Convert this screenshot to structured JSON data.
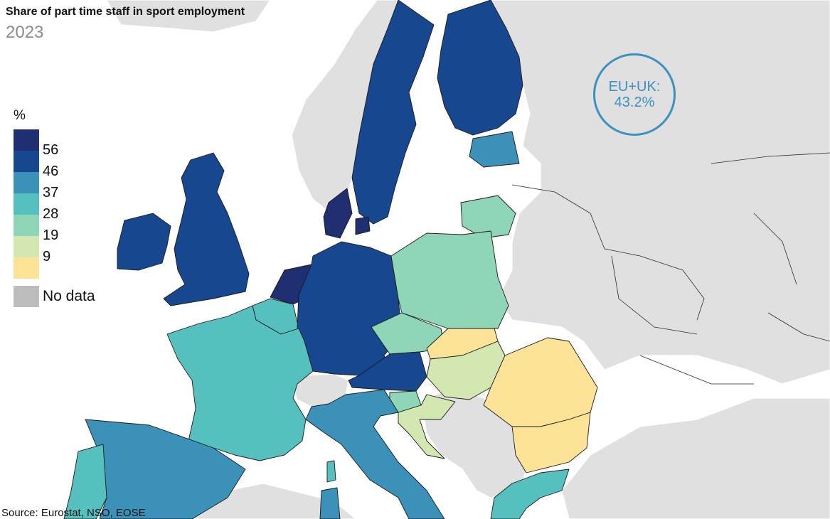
{
  "title": "Share of part time staff in sport employment",
  "subtitle": "2023",
  "legend": {
    "unit": "%",
    "items": [
      {
        "label": "56",
        "color": "#1f2f72"
      },
      {
        "label": "46",
        "color": "#17478f"
      },
      {
        "label": "37",
        "color": "#3b91b8"
      },
      {
        "label": "28",
        "color": "#56c0bf"
      },
      {
        "label": "19",
        "color": "#8fd5b8"
      },
      {
        "label": "9",
        "color": "#d2e8b0"
      },
      {
        "label": "",
        "color": "#fde397"
      }
    ],
    "no_data_label": "No data",
    "no_data_color": "#bdbdbd"
  },
  "eu_total": {
    "line1": "EU+UK:",
    "line2": "43.2%"
  },
  "source": "Source: Eurostat, NSO, EOSE",
  "colors": {
    "sea": "#ffffff",
    "non_eu_land": "#e0e0e0",
    "accent": "#3b91bf"
  }
}
